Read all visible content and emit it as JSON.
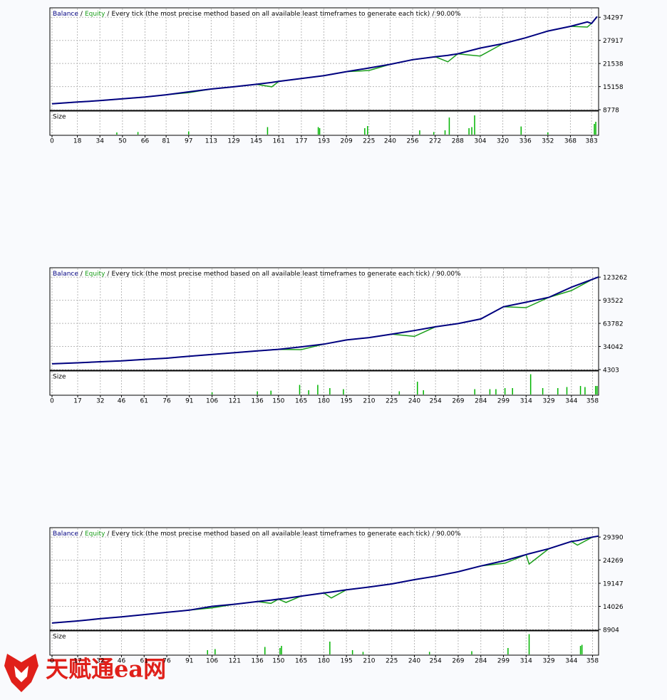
{
  "watermark": "天赋通ea网",
  "chart_data": [
    {
      "type": "line",
      "separator": "/",
      "subtitle": "Every tick (the most precise method based on all available least timeframes to generate each tick)",
      "quality": "90.00%",
      "size_label": "Size",
      "grid": true,
      "x": [
        0,
        18,
        34,
        50,
        66,
        81,
        97,
        113,
        129,
        145,
        156,
        161,
        177,
        193,
        209,
        225,
        240,
        256,
        272,
        281,
        288,
        304,
        320,
        336,
        352,
        368,
        380,
        383,
        387
      ],
      "series": [
        {
          "name": "Balance",
          "color": "#000080",
          "values": [
            10400,
            10900,
            11300,
            11800,
            12300,
            12900,
            13700,
            14500,
            15100,
            15800,
            16300,
            16600,
            17400,
            18200,
            19300,
            20300,
            21300,
            22600,
            23400,
            23800,
            24200,
            25800,
            27000,
            28600,
            30500,
            31800,
            33000,
            32600,
            34500
          ]
        },
        {
          "name": "Equity",
          "color": "#1a9e1a",
          "values": [
            10400,
            10900,
            11300,
            11800,
            12300,
            12900,
            13500,
            14500,
            15100,
            15800,
            15100,
            16600,
            17400,
            18200,
            19300,
            19600,
            21300,
            22600,
            23400,
            22000,
            24200,
            23600,
            27000,
            28600,
            30500,
            31800,
            31600,
            32600,
            34500
          ]
        }
      ],
      "xlim": [
        0,
        388
      ],
      "xticks": [
        0,
        18,
        34,
        50,
        66,
        81,
        97,
        113,
        129,
        145,
        161,
        177,
        193,
        209,
        225,
        240,
        256,
        272,
        288,
        304,
        320,
        336,
        352,
        368,
        383
      ],
      "ylim": [
        8600,
        36900
      ],
      "yticks": [
        34297,
        27917,
        21538,
        15158,
        8778
      ],
      "size": {
        "color": "#00b400",
        "ylim": [
          0,
          1
        ],
        "x": [
          46,
          61,
          97,
          153,
          189,
          190,
          222,
          224,
          261,
          271,
          279,
          282,
          296,
          298,
          300,
          333,
          352,
          385,
          386
        ],
        "values": [
          0.1,
          0.12,
          0.15,
          0.35,
          0.35,
          0.3,
          0.3,
          0.4,
          0.2,
          0.12,
          0.2,
          0.8,
          0.3,
          0.35,
          0.9,
          0.38,
          0.1,
          0.5,
          0.6
        ]
      }
    },
    {
      "type": "line",
      "separator": "/",
      "subtitle": "Every tick (the most precise method based on all available least timeframes to generate each tick)",
      "quality": "90.00%",
      "size_label": "Size",
      "grid": true,
      "x": [
        0,
        17,
        32,
        46,
        61,
        76,
        91,
        106,
        121,
        136,
        150,
        165,
        180,
        195,
        210,
        225,
        240,
        254,
        269,
        284,
        299,
        314,
        329,
        344,
        358,
        362
      ],
      "series": [
        {
          "name": "Balance",
          "color": "#000080",
          "values": [
            11700,
            13000,
            14400,
            15500,
            17300,
            19000,
            21500,
            23800,
            26000,
            28400,
            30300,
            33500,
            37000,
            42400,
            45400,
            49800,
            54500,
            59400,
            63500,
            69400,
            85100,
            91000,
            97200,
            110300,
            120500,
            123500
          ]
        },
        {
          "name": "Equity",
          "color": "#1a9e1a",
          "values": [
            11700,
            13000,
            14400,
            15500,
            17300,
            19000,
            21500,
            23800,
            26000,
            28400,
            30300,
            30000,
            37000,
            42400,
            45400,
            49800,
            47000,
            59400,
            63500,
            69400,
            85100,
            84000,
            97200,
            106000,
            120500,
            123500
          ]
        }
      ],
      "xlim": [
        0,
        362
      ],
      "xticks": [
        0,
        17,
        32,
        46,
        61,
        76,
        91,
        106,
        121,
        136,
        150,
        165,
        180,
        195,
        210,
        225,
        240,
        254,
        269,
        284,
        299,
        314,
        329,
        344,
        358
      ],
      "ylim": [
        3400,
        135300
      ],
      "yticks": [
        123262,
        93522,
        63782,
        34042,
        4303
      ],
      "size": {
        "color": "#00b400",
        "ylim": [
          0,
          1
        ],
        "x": [
          106,
          136,
          145,
          164,
          170,
          176,
          184,
          193,
          230,
          242,
          246,
          280,
          290,
          294,
          300,
          305,
          317,
          325,
          335,
          341,
          350,
          353,
          360,
          361
        ],
        "values": [
          0.1,
          0.15,
          0.18,
          0.45,
          0.2,
          0.45,
          0.3,
          0.25,
          0.15,
          0.6,
          0.2,
          0.25,
          0.25,
          0.25,
          0.3,
          0.3,
          0.95,
          0.3,
          0.3,
          0.35,
          0.4,
          0.35,
          0.4,
          0.4
        ]
      }
    },
    {
      "type": "line",
      "separator": "/",
      "subtitle": "Every tick (the most precise method based on all available least timeframes to generate each tick)",
      "quality": "90.00%",
      "size_label": "Size",
      "grid": true,
      "x": [
        0,
        17,
        32,
        46,
        61,
        76,
        91,
        106,
        121,
        136,
        145,
        150,
        155,
        165,
        180,
        185,
        195,
        210,
        225,
        240,
        254,
        269,
        284,
        300,
        314,
        316,
        329,
        344,
        348,
        358,
        362
      ],
      "series": [
        {
          "name": "Balance",
          "color": "#000080",
          "values": [
            10344,
            10800,
            11300,
            11700,
            12200,
            12700,
            13200,
            14025,
            14500,
            15100,
            15400,
            15625,
            15800,
            16300,
            17000,
            17200,
            17705,
            18300,
            19000,
            19945,
            20700,
            21700,
            22985,
            24200,
            25500,
            25700,
            26800,
            28424,
            28600,
            29390,
            29600
          ]
        },
        {
          "name": "Equity",
          "color": "#1a9e1a",
          "values": [
            10344,
            10800,
            11300,
            11700,
            12200,
            12700,
            13200,
            13700,
            14500,
            15100,
            14700,
            15625,
            14900,
            16300,
            17000,
            15900,
            17705,
            18300,
            19000,
            19945,
            20700,
            21700,
            22985,
            23600,
            25500,
            23400,
            26800,
            28424,
            27600,
            29390,
            29600
          ]
        }
      ],
      "xlim": [
        0,
        362
      ],
      "xticks": [
        0,
        17,
        32,
        46,
        61,
        76,
        91,
        106,
        121,
        136,
        150,
        165,
        180,
        195,
        210,
        225,
        240,
        254,
        269,
        284,
        299,
        314,
        329,
        344,
        358
      ],
      "ylim": [
        8744,
        31470
      ],
      "yticks": [
        29390,
        24269,
        19147,
        14026,
        8904
      ],
      "size": {
        "color": "#00b400",
        "ylim": [
          0,
          1
        ],
        "x": [
          103,
          108,
          141,
          151,
          152,
          184,
          199,
          206,
          250,
          278,
          302,
          316,
          350,
          351
        ],
        "values": [
          0.2,
          0.25,
          0.35,
          0.3,
          0.4,
          0.6,
          0.2,
          0.12,
          0.12,
          0.15,
          0.3,
          0.95,
          0.4,
          0.45
        ]
      }
    }
  ]
}
